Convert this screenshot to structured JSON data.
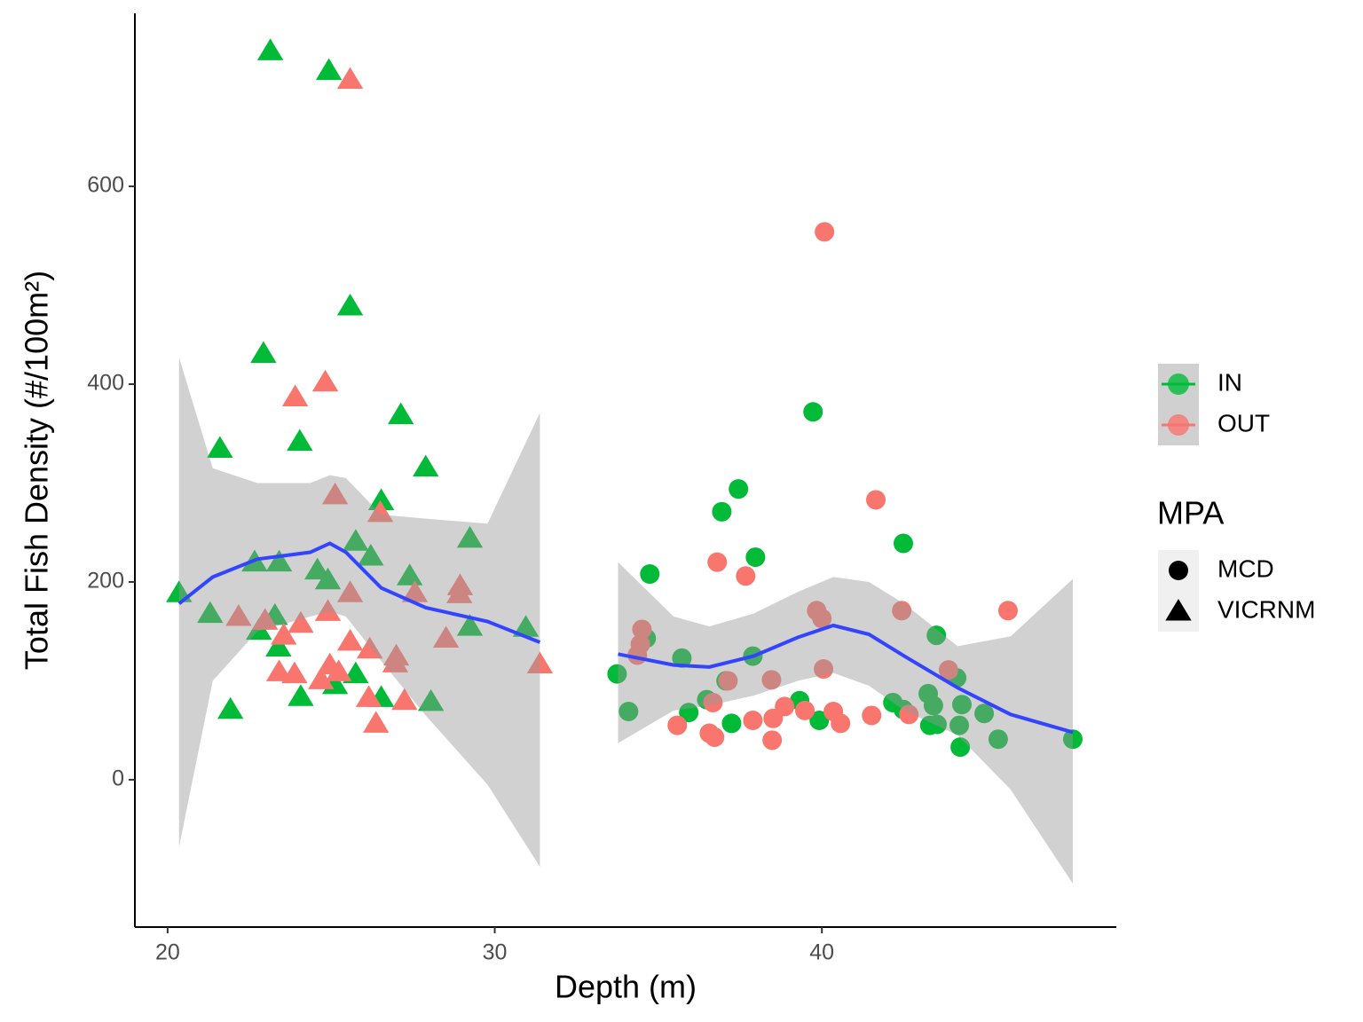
{
  "chart_data": {
    "type": "scatter",
    "x_label": "Depth (m)",
    "y_label": "Total Fish Density (#/100m²)",
    "xlim": [
      19,
      49
    ],
    "ylim": [
      -149,
      775
    ],
    "xticks": [
      20,
      30,
      40
    ],
    "yticks": [
      0,
      200,
      400,
      600
    ],
    "series": [
      {
        "name": "IN",
        "color": "#00BA38",
        "x": [
          23.14,
          24.93,
          25.58,
          22.93,
          21.6,
          24.04,
          27.13,
          27.89,
          26.53,
          25.75,
          29.24,
          26.21,
          20.35,
          22.66,
          23.41,
          24.58,
          24.9,
          27.4,
          21.3,
          23.28,
          22.79,
          29.24,
          30.95,
          23.39,
          25.75,
          25.12,
          24.07,
          26.53,
          28.05,
          21.92,
          39.73,
          37.45,
          36.94,
          42.49,
          37.97,
          34.74,
          43.5,
          34.63,
          37.89,
          35.72,
          33.74,
          44.12,
          37.07,
          36.48,
          43.25,
          42.17,
          44.28,
          43.41,
          39.32,
          34.09,
          35.93,
          42.49,
          44.96,
          37.24,
          39.92,
          43.3,
          43.52,
          44.2,
          45.39,
          47.67,
          44.23
        ],
        "values": [
          737,
          717,
          479,
          431,
          335,
          342,
          369,
          316,
          282,
          241,
          244,
          226,
          189,
          220,
          220,
          212,
          202,
          206,
          168,
          166,
          151,
          155,
          154,
          134,
          107,
          96,
          84,
          83,
          79,
          71,
          372,
          294,
          271,
          239,
          225,
          208,
          146,
          143,
          125,
          123,
          107,
          103,
          100,
          81,
          87,
          78,
          76,
          75,
          80,
          69,
          68,
          71,
          67,
          57,
          60,
          55,
          56,
          55,
          41,
          41,
          33
        ],
        "shape": [
          "VICRNM",
          "VICRNM",
          "VICRNM",
          "VICRNM",
          "VICRNM",
          "VICRNM",
          "VICRNM",
          "VICRNM",
          "VICRNM",
          "VICRNM",
          "VICRNM",
          "VICRNM",
          "VICRNM",
          "VICRNM",
          "VICRNM",
          "VICRNM",
          "VICRNM",
          "VICRNM",
          "VICRNM",
          "VICRNM",
          "VICRNM",
          "VICRNM",
          "VICRNM",
          "VICRNM",
          "VICRNM",
          "VICRNM",
          "VICRNM",
          "VICRNM",
          "VICRNM",
          "VICRNM",
          "MCD",
          "MCD",
          "MCD",
          "MCD",
          "MCD",
          "MCD",
          "MCD",
          "MCD",
          "MCD",
          "MCD",
          "MCD",
          "MCD",
          "MCD",
          "MCD",
          "MCD",
          "MCD",
          "MCD",
          "MCD",
          "MCD",
          "MCD",
          "MCD",
          "MCD",
          "MCD",
          "MCD",
          "MCD",
          "MCD",
          "MCD",
          "MCD",
          "MCD",
          "MCD",
          "MCD"
        ]
      },
      {
        "name": "OUT",
        "color": "#F8766D",
        "x": [
          25.58,
          24.82,
          23.9,
          25.12,
          26.5,
          25.58,
          28.94,
          28.92,
          27.56,
          24.9,
          22.17,
          22.98,
          24.07,
          23.55,
          28.51,
          25.58,
          26.18,
          26.99,
          26.96,
          31.38,
          23.41,
          23.88,
          24.96,
          25.23,
          24.69,
          26.15,
          27.24,
          26.37,
          40.08,
          41.65,
          36.8,
          37.67,
          45.69,
          42.44,
          39.84,
          40,
          34.5,
          34.45,
          34.36,
          40.05,
          43.87,
          37.13,
          38.46,
          36.67,
          38.86,
          39.48,
          40.35,
          42.66,
          41.52,
          38.51,
          37.89,
          40.57,
          35.58,
          36.56,
          36.72,
          38.48
        ],
        "values": [
          708,
          402,
          387,
          288,
          270,
          189,
          196,
          188,
          189,
          170,
          165,
          161,
          158,
          146,
          143,
          140,
          132,
          125,
          118,
          117,
          109,
          107,
          116,
          109,
          101,
          83,
          80,
          57,
          554,
          283,
          220,
          206,
          171,
          171,
          171,
          163,
          152,
          137,
          126,
          112,
          111,
          100,
          101,
          78,
          74,
          70,
          69,
          66,
          65,
          62,
          60,
          57,
          55,
          47,
          43,
          40
        ],
        "shape": [
          "VICRNM",
          "VICRNM",
          "VICRNM",
          "VICRNM",
          "VICRNM",
          "VICRNM",
          "VICRNM",
          "VICRNM",
          "VICRNM",
          "VICRNM",
          "VICRNM",
          "VICRNM",
          "VICRNM",
          "VICRNM",
          "VICRNM",
          "VICRNM",
          "VICRNM",
          "VICRNM",
          "VICRNM",
          "VICRNM",
          "VICRNM",
          "VICRNM",
          "VICRNM",
          "VICRNM",
          "VICRNM",
          "VICRNM",
          "VICRNM",
          "VICRNM",
          "MCD",
          "MCD",
          "MCD",
          "MCD",
          "MCD",
          "MCD",
          "MCD",
          "MCD",
          "MCD",
          "MCD",
          "MCD",
          "MCD",
          "MCD",
          "MCD",
          "MCD",
          "MCD",
          "MCD",
          "MCD",
          "MCD",
          "MCD",
          "MCD",
          "MCD",
          "MCD",
          "MCD",
          "MCD",
          "MCD",
          "MCD",
          "MCD"
        ]
      }
    ],
    "shape_legend": {
      "title": "MPA",
      "items": [
        "MCD",
        "VICRNM"
      ]
    },
    "smooth_color": "#3344ff",
    "band_color": "#999999",
    "smooth": [
      {
        "x": [
          20.35,
          21.38,
          22.74,
          24.36,
          24.96,
          25.45,
          26.53,
          27.89,
          29.78,
          31.38
        ],
        "values": [
          178,
          205,
          223,
          230,
          239,
          230,
          194,
          174,
          160,
          139
        ],
        "lower": [
          -68,
          100,
          150,
          165,
          170,
          165,
          120,
          65,
          -5,
          -88
        ],
        "upper": [
          427,
          315,
          300,
          300,
          308,
          305,
          268,
          264,
          259,
          371
        ]
      },
      {
        "x": [
          33.77,
          35.47,
          36.56,
          37.91,
          39.27,
          40.35,
          41.44,
          42.52,
          44.15,
          45.77,
          47.67
        ],
        "values": [
          127,
          116,
          114,
          125,
          144,
          156,
          147,
          125,
          93,
          66,
          48
        ],
        "lower": [
          37,
          70,
          75,
          85,
          100,
          108,
          95,
          70,
          45,
          -10,
          -105
        ],
        "upper": [
          220,
          165,
          155,
          168,
          190,
          205,
          200,
          178,
          135,
          145,
          203
        ]
      }
    ]
  }
}
